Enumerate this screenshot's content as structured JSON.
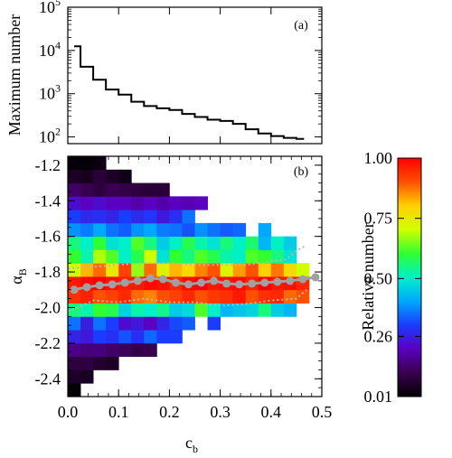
{
  "chart_data": [
    {
      "panel_label": "(a)",
      "type": "line",
      "ylabel": "Maximum number",
      "yscale": "log",
      "ylim": [
        70,
        100000
      ],
      "xlim": [
        0.0,
        0.5
      ],
      "yticks": [
        {
          "value": 100,
          "base": "10",
          "exp": "2"
        },
        {
          "value": 1000,
          "base": "10",
          "exp": "3"
        },
        {
          "value": 10000,
          "base": "10",
          "exp": "4"
        },
        {
          "value": 100000,
          "base": "10",
          "exp": "5"
        }
      ],
      "step_x": [
        0.0125,
        0.025,
        0.05,
        0.075,
        0.1,
        0.125,
        0.15,
        0.175,
        0.2,
        0.225,
        0.25,
        0.275,
        0.3,
        0.325,
        0.35,
        0.375,
        0.4,
        0.425,
        0.45
      ],
      "step_y": [
        12500,
        4200,
        2100,
        1250,
        950,
        650,
        520,
        460,
        420,
        340,
        290,
        250,
        235,
        200,
        150,
        120,
        105,
        95,
        90
      ]
    },
    {
      "panel_label": "(b)",
      "type": "heatmap",
      "xlabel": "c",
      "xlabel_sub": "b",
      "ylabel": "α",
      "ylabel_sub": "B",
      "xlim": [
        0.0,
        0.5
      ],
      "ylim": [
        -2.5,
        -1.15
      ],
      "x_edges": [
        0.0,
        0.025,
        0.05,
        0.075,
        0.1,
        0.125,
        0.15,
        0.175,
        0.2,
        0.225,
        0.25,
        0.275,
        0.3,
        0.325,
        0.35,
        0.375,
        0.4,
        0.425,
        0.45,
        0.475
      ],
      "y_edges": [
        -2.5,
        -2.425,
        -2.35,
        -2.275,
        -2.2,
        -2.125,
        -2.05,
        -1.975,
        -1.9,
        -1.825,
        -1.75,
        -1.675,
        -1.6,
        -1.525,
        -1.45,
        -1.375,
        -1.3,
        -1.225,
        -1.15
      ],
      "x_ticks": [
        "0.0",
        "0.1",
        "0.2",
        "0.3",
        "0.4",
        "0.5"
      ],
      "x_tick_values": [
        0.0,
        0.1,
        0.2,
        0.3,
        0.4,
        0.5
      ],
      "y_ticks": [
        "-2.4",
        "-2.2",
        "-2.0",
        "-1.8",
        "-1.6",
        "-1.4",
        "-1.2"
      ],
      "y_tick_values": [
        -2.4,
        -2.2,
        -2.0,
        -1.8,
        -1.6,
        -1.4,
        -1.2
      ],
      "grid": [
        [
          0.01,
          null,
          null,
          null,
          null,
          null,
          null,
          null,
          null,
          null,
          null,
          null,
          null,
          null,
          null,
          null,
          null,
          null,
          null
        ],
        [
          0.05,
          0.04,
          null,
          null,
          null,
          null,
          null,
          null,
          null,
          null,
          null,
          null,
          null,
          null,
          null,
          null,
          null,
          null,
          null
        ],
        [
          0.08,
          0.08,
          0.06,
          0.05,
          null,
          null,
          null,
          null,
          null,
          null,
          null,
          null,
          null,
          null,
          null,
          null,
          null,
          null,
          null
        ],
        [
          0.15,
          0.14,
          0.14,
          0.12,
          0.11,
          0.09,
          0.1,
          null,
          null,
          null,
          null,
          null,
          null,
          null,
          null,
          null,
          null,
          null,
          null
        ],
        [
          0.26,
          0.24,
          0.3,
          0.28,
          0.32,
          0.28,
          0.34,
          0.3,
          0.3,
          null,
          null,
          null,
          null,
          null,
          null,
          null,
          null,
          null,
          null
        ],
        [
          0.35,
          0.25,
          0.35,
          0.3,
          0.22,
          0.24,
          0.2,
          0.26,
          0.31,
          0.33,
          null,
          0.3,
          null,
          null,
          null,
          null,
          null,
          null,
          null
        ],
        [
          0.55,
          0.52,
          0.6,
          0.58,
          0.46,
          0.52,
          0.5,
          0.54,
          0.45,
          0.47,
          0.62,
          0.5,
          0.42,
          0.44,
          0.46,
          0.55,
          0.45,
          0.42,
          null
        ],
        [
          0.94,
          0.96,
          0.9,
          0.92,
          0.95,
          0.88,
          0.86,
          0.9,
          0.92,
          0.95,
          0.9,
          0.93,
          0.94,
          0.97,
          0.9,
          0.94,
          0.95,
          0.88,
          0.9
        ],
        [
          0.97,
          0.99,
          1.0,
          0.98,
          0.96,
          0.97,
          0.99,
          0.98,
          0.95,
          0.99,
          1.0,
          0.97,
          0.98,
          0.99,
          0.96,
          1.0,
          0.97,
          0.98,
          0.95
        ],
        [
          0.7,
          0.82,
          0.88,
          0.75,
          0.92,
          0.66,
          0.88,
          0.73,
          0.82,
          0.78,
          0.86,
          0.9,
          0.72,
          0.84,
          0.9,
          0.8,
          0.87,
          0.78,
          0.7
        ],
        [
          0.6,
          0.52,
          0.68,
          0.62,
          0.5,
          0.58,
          0.7,
          0.48,
          0.6,
          0.55,
          0.62,
          0.58,
          0.52,
          0.5,
          0.62,
          0.6,
          0.55,
          0.48,
          null
        ],
        [
          0.55,
          0.5,
          0.6,
          0.48,
          0.5,
          0.62,
          0.55,
          0.45,
          0.5,
          0.58,
          0.52,
          0.48,
          0.55,
          0.5,
          0.56,
          0.42,
          0.5,
          0.45,
          null
        ],
        [
          0.38,
          0.36,
          0.4,
          0.35,
          0.33,
          0.38,
          0.4,
          0.36,
          0.35,
          0.32,
          0.38,
          0.35,
          0.33,
          0.34,
          null,
          0.4,
          null,
          null,
          null
        ],
        [
          0.3,
          0.27,
          0.28,
          0.26,
          0.3,
          0.27,
          0.29,
          0.24,
          0.28,
          0.35,
          null,
          null,
          null,
          null,
          null,
          null,
          null,
          null,
          null
        ],
        [
          0.22,
          0.2,
          0.22,
          0.2,
          0.2,
          0.18,
          0.2,
          0.18,
          0.2,
          0.19,
          0.2,
          null,
          null,
          null,
          null,
          null,
          null,
          null,
          null
        ],
        [
          0.12,
          0.1,
          0.08,
          0.1,
          0.09,
          0.08,
          0.07,
          0.07,
          null,
          null,
          null,
          null,
          null,
          null,
          null,
          null,
          null,
          null,
          null
        ],
        [
          0.05,
          0.04,
          0.07,
          0.05,
          0.03,
          null,
          null,
          null,
          null,
          null,
          null,
          null,
          null,
          null,
          null,
          null,
          null,
          null,
          null
        ],
        [
          0.01,
          0.01,
          0.02,
          null,
          null,
          null,
          null,
          null,
          null,
          null,
          null,
          null,
          null,
          null,
          null,
          null,
          null,
          null,
          null
        ]
      ],
      "mean_x": [
        0.0125,
        0.0375,
        0.0625,
        0.0875,
        0.1125,
        0.1375,
        0.1625,
        0.1875,
        0.2125,
        0.2375,
        0.2625,
        0.2875,
        0.3125,
        0.3375,
        0.3625,
        0.3875,
        0.4125,
        0.4375,
        0.4625,
        0.4875
      ],
      "mean_y": [
        -1.9,
        -1.885,
        -1.875,
        -1.87,
        -1.86,
        -1.85,
        -1.835,
        -1.84,
        -1.86,
        -1.87,
        -1.86,
        -1.85,
        -1.865,
        -1.87,
        -1.865,
        -1.86,
        -1.855,
        -1.85,
        -1.84,
        -1.83
      ],
      "upper_x": [
        0.0,
        0.05,
        0.1,
        0.15,
        0.2,
        0.25,
        0.3,
        0.35,
        0.4,
        0.43,
        0.45,
        0.47
      ],
      "upper_y": [
        -1.78,
        -1.77,
        -1.76,
        -1.75,
        -1.75,
        -1.76,
        -1.76,
        -1.76,
        -1.74,
        -1.73,
        -1.68,
        -1.65
      ],
      "lower_x": [
        0.0,
        0.02,
        0.05,
        0.1,
        0.15,
        0.2,
        0.25,
        0.3,
        0.35,
        0.4,
        0.45,
        0.47
      ],
      "lower_y": [
        -2.02,
        -2.0,
        -1.96,
        -1.97,
        -1.95,
        -1.97,
        -1.97,
        -1.99,
        -1.98,
        -1.96,
        -1.95,
        -1.9
      ]
    },
    {
      "type": "colorbar",
      "label": "Relative number",
      "ticks": [
        "0.01",
        "0.26",
        "0.50",
        "0.75",
        "1.00"
      ],
      "tick_values": [
        0.01,
        0.26,
        0.5,
        0.75,
        1.0
      ],
      "colors": [
        "#000000",
        "#3a0050",
        "#5a00c0",
        "#1a3cff",
        "#00a8ff",
        "#00f0c8",
        "#30ff30",
        "#d0ff00",
        "#ffd000",
        "#ff5000",
        "#ff0000"
      ]
    }
  ],
  "colors": {
    "mean_line": "#a0a0a0",
    "band_line": "#b8b8b8"
  }
}
